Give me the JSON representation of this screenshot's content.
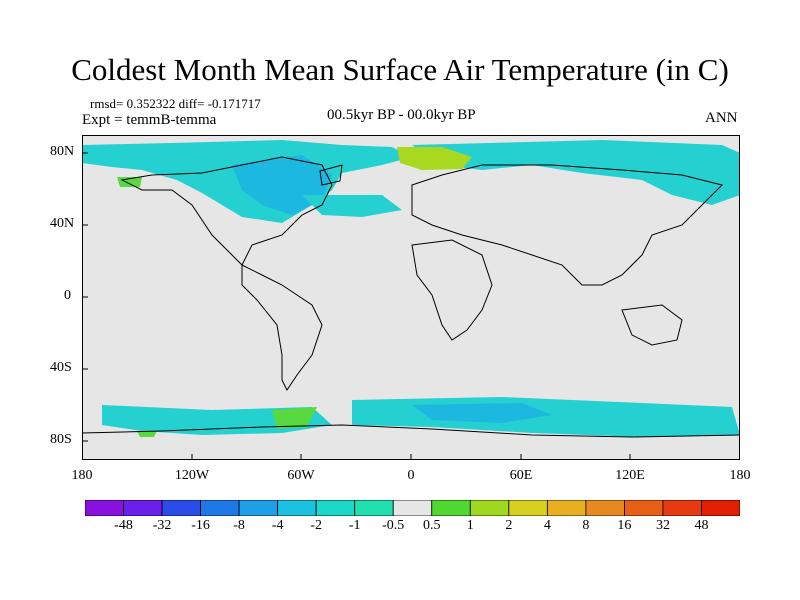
{
  "title": "Coldest Month Mean Surface Air Temperature (in C)",
  "stats": "rmsd= 0.352322 diff= -0.171717",
  "experiment": "Expt = temmB-temma",
  "period": "00.5kyr BP - 00.0kyr BP",
  "season": "ANN",
  "axes": {
    "lat_labels": [
      "80N",
      "40N",
      "0",
      "40S",
      "80S"
    ],
    "lon_labels": [
      "180",
      "120W",
      "60W",
      "0",
      "60E",
      "120E",
      "180"
    ]
  },
  "colorbar": {
    "colors": [
      "#8a10e0",
      "#6a20e8",
      "#2a4ce8",
      "#1e78e8",
      "#1ea0e8",
      "#1cc0e0",
      "#1cd8c8",
      "#20e0b0",
      "#e6e6e6",
      "#50d830",
      "#a0d820",
      "#d8d020",
      "#e8b020",
      "#e88820",
      "#e86018",
      "#e83a10",
      "#e02000"
    ],
    "labels": [
      "-48",
      "-32",
      "-16",
      "-8",
      "-4",
      "-2",
      "-1",
      "-0.5",
      "0.5",
      "1",
      "2",
      "4",
      "8",
      "16",
      "32",
      "48"
    ]
  }
}
